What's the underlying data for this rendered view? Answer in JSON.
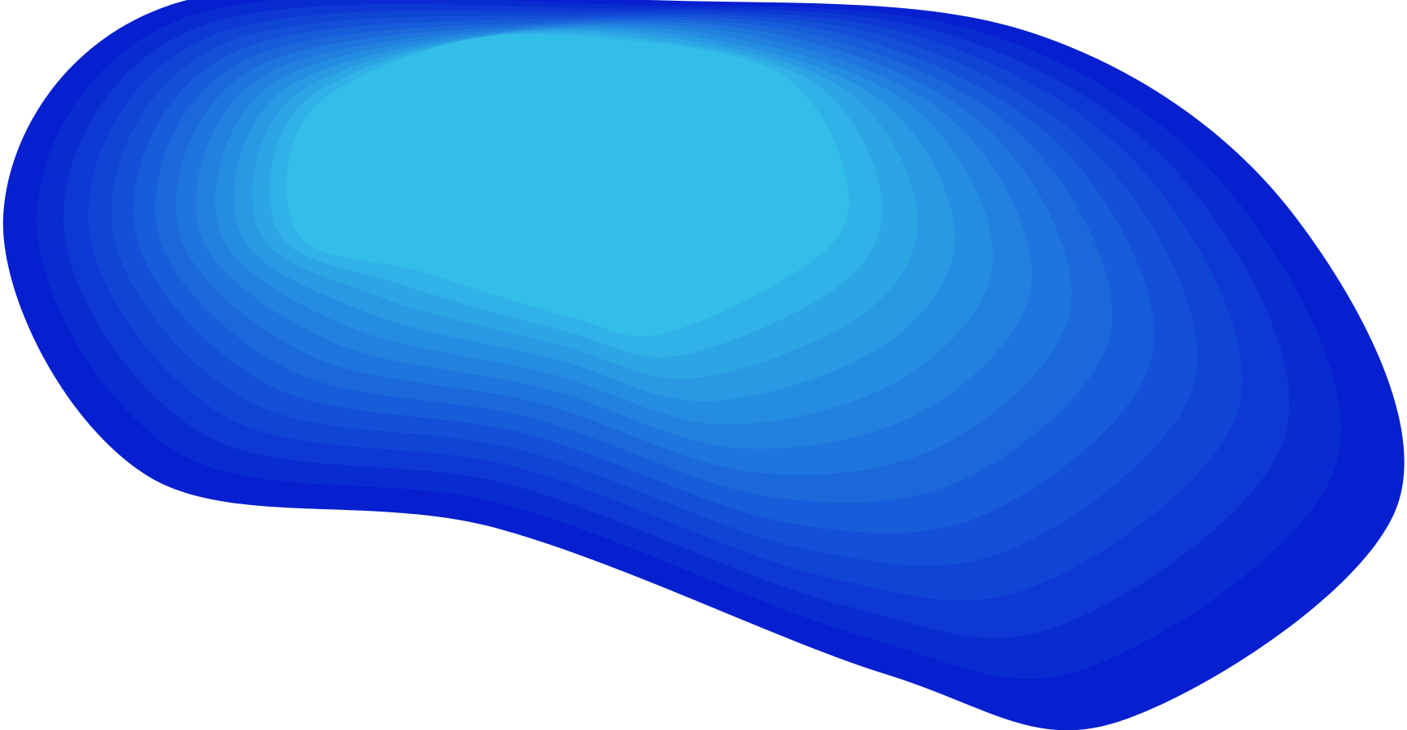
{
  "artwork": {
    "shape_icon": "layered-blob-icon",
    "layer_count": 14,
    "colors": {
      "outer": "#0620CF",
      "inner": "#33BDE9",
      "background": "#FFFFFF"
    }
  }
}
